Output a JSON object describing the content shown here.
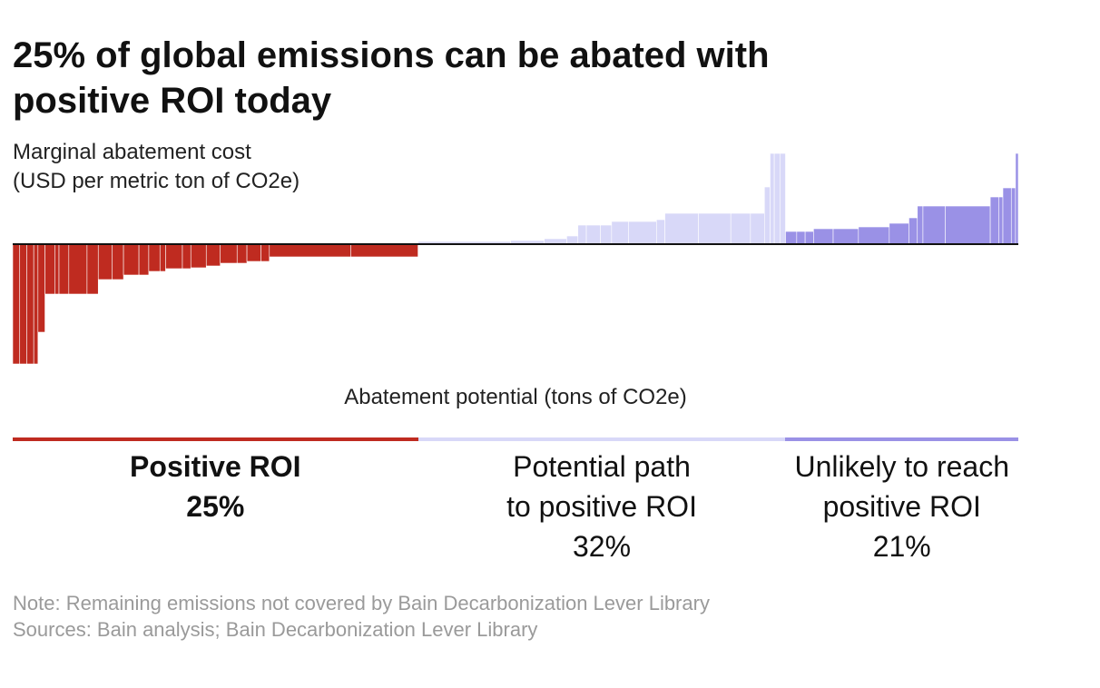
{
  "title": "25% of global emissions can be abated with positive ROI today",
  "y_axis_label": [
    "Marginal abatement cost",
    "(USD per metric ton of CO2e)"
  ],
  "x_axis_label": "Abatement potential (tons of CO2e)",
  "colors": {
    "positive": "#bf2b20",
    "potential": "#d8d8f8",
    "unlikely": "#9a91e6",
    "zero_line": "#111111"
  },
  "segments": [
    {
      "key": "positive",
      "lines": [
        "Positive ROI",
        "25%"
      ],
      "share": 25
    },
    {
      "key": "potential",
      "lines": [
        "Potential path",
        "to positive ROI",
        "32%"
      ],
      "share": 32
    },
    {
      "key": "unlikely",
      "lines": [
        "Unlikely to reach",
        "positive ROI",
        "21%"
      ],
      "share": 21
    }
  ],
  "chart_data": {
    "type": "bar",
    "subtype": "marginal abatement cost curve (variable-width bars)",
    "title": "25% of global emissions can be abated with positive ROI today",
    "ylabel": "Marginal abatement cost (USD per metric ton of CO2e)",
    "xlabel": "Abatement potential (tons of CO2e)",
    "axis_tick_labels_shown": false,
    "note": "relative values; axes have no printed scale",
    "series": [
      {
        "name": "Positive ROI",
        "color": "#bf2b20",
        "bars": [
          {
            "w": 2.5,
            "v": -132
          },
          {
            "w": 2.5,
            "v": -132
          },
          {
            "w": 2.5,
            "v": -132
          },
          {
            "w": 1.5,
            "v": -132
          },
          {
            "w": 2.5,
            "v": -97
          },
          {
            "w": 3.5,
            "v": -55
          },
          {
            "w": 1.5,
            "v": -55
          },
          {
            "w": 3.5,
            "v": -55
          },
          {
            "w": 6.5,
            "v": -55
          },
          {
            "w": 4.0,
            "v": -55
          },
          {
            "w": 5.0,
            "v": -39
          },
          {
            "w": 4.0,
            "v": -39
          },
          {
            "w": 5.5,
            "v": -34
          },
          {
            "w": 3.5,
            "v": -34
          },
          {
            "w": 4.0,
            "v": -30
          },
          {
            "w": 2.0,
            "v": -30
          },
          {
            "w": 6.0,
            "v": -27
          },
          {
            "w": 3.0,
            "v": -27
          },
          {
            "w": 5.5,
            "v": -26
          },
          {
            "w": 5.0,
            "v": -24
          },
          {
            "w": 6.0,
            "v": -21
          },
          {
            "w": 3.5,
            "v": -21
          },
          {
            "w": 5.0,
            "v": -19
          },
          {
            "w": 3.0,
            "v": -19
          },
          {
            "w": 29.0,
            "v": -14
          },
          {
            "w": 24.0,
            "v": -14
          }
        ]
      },
      {
        "name": "Potential path to positive ROI",
        "color": "#d8d8f8",
        "bars": [
          {
            "w": 33.0,
            "v": 3
          },
          {
            "w": 12.0,
            "v": 4
          },
          {
            "w": 8.0,
            "v": 6
          },
          {
            "w": 4.0,
            "v": 9
          },
          {
            "w": 3.0,
            "v": 21
          },
          {
            "w": 5.0,
            "v": 21
          },
          {
            "w": 4.0,
            "v": 21
          },
          {
            "w": 6.0,
            "v": 25
          },
          {
            "w": 10.0,
            "v": 25
          },
          {
            "w": 3.0,
            "v": 27
          },
          {
            "w": 12.0,
            "v": 34
          },
          {
            "w": 11.5,
            "v": 34
          },
          {
            "w": 7.0,
            "v": 34
          },
          {
            "w": 5.0,
            "v": 34
          },
          {
            "w": 2.0,
            "v": 63
          },
          {
            "w": 1.5,
            "v": 100
          },
          {
            "w": 2.0,
            "v": 100
          },
          {
            "w": 2.0,
            "v": 100
          }
        ]
      },
      {
        "name": "Unlikely to reach positive ROI",
        "color": "#9a91e6",
        "bars": [
          {
            "w": 4.0,
            "v": 14
          },
          {
            "w": 3.0,
            "v": 14
          },
          {
            "w": 3.0,
            "v": 14
          },
          {
            "w": 7.0,
            "v": 17
          },
          {
            "w": 9.0,
            "v": 17
          },
          {
            "w": 11.0,
            "v": 19
          },
          {
            "w": 7.0,
            "v": 23
          },
          {
            "w": 3.0,
            "v": 29
          },
          {
            "w": 2.0,
            "v": 42
          },
          {
            "w": 8.0,
            "v": 42
          },
          {
            "w": 16.0,
            "v": 42
          },
          {
            "w": 3.0,
            "v": 52
          },
          {
            "w": 1.5,
            "v": 52
          },
          {
            "w": 3.0,
            "v": 62
          },
          {
            "w": 1.5,
            "v": 62
          },
          {
            "w": 1.0,
            "v": 100
          }
        ]
      }
    ]
  },
  "notes": [
    "Note: Remaining emissions not covered by Bain Decarbonization Lever Library",
    "Sources: Bain analysis; Bain Decarbonization Lever Library"
  ]
}
